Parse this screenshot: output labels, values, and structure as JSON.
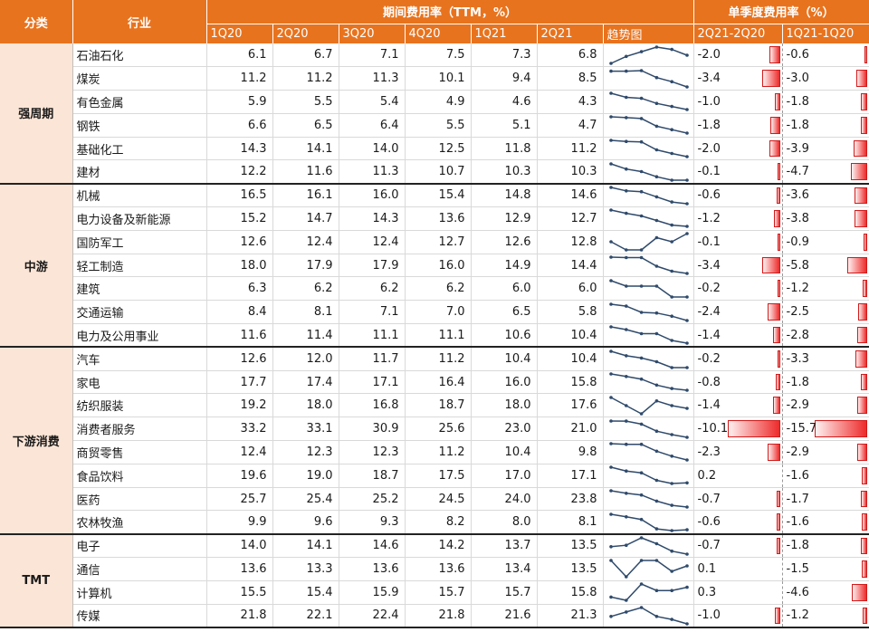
{
  "header": {
    "category": "分类",
    "industry": "行业",
    "ttm_group": "期间费用率（TTM，%）",
    "quarter_group": "单季度费用率（%）",
    "quarters": [
      "1Q20",
      "2Q20",
      "3Q20",
      "4Q20",
      "1Q21",
      "2Q21"
    ],
    "trend": "趋势图",
    "delta1": "2Q21-2Q20",
    "delta2": "1Q21-1Q20"
  },
  "groups": [
    {
      "name": "强周期",
      "rows": [
        {
          "industry": "石油石化",
          "vals": [
            "6.1",
            "6.7",
            "7.1",
            "7.5",
            "7.3",
            "6.8"
          ],
          "d1": "-2.0",
          "d2": "-0.6"
        },
        {
          "industry": "煤炭",
          "vals": [
            "11.2",
            "11.2",
            "11.3",
            "10.1",
            "9.4",
            "8.5"
          ],
          "d1": "-3.4",
          "d2": "-3.0"
        },
        {
          "industry": "有色金属",
          "vals": [
            "5.9",
            "5.5",
            "5.4",
            "4.9",
            "4.6",
            "4.3"
          ],
          "d1": "-1.0",
          "d2": "-1.8"
        },
        {
          "industry": "钢铁",
          "vals": [
            "6.6",
            "6.5",
            "6.4",
            "5.5",
            "5.1",
            "4.7"
          ],
          "d1": "-1.8",
          "d2": "-1.8"
        },
        {
          "industry": "基础化工",
          "vals": [
            "14.3",
            "14.1",
            "14.0",
            "12.5",
            "11.8",
            "11.2"
          ],
          "d1": "-2.0",
          "d2": "-3.9"
        },
        {
          "industry": "建材",
          "vals": [
            "12.2",
            "11.6",
            "11.3",
            "10.7",
            "10.3",
            "10.3"
          ],
          "d1": "-0.1",
          "d2": "-4.7"
        }
      ]
    },
    {
      "name": "中游",
      "rows": [
        {
          "industry": "机械",
          "vals": [
            "16.5",
            "16.1",
            "16.0",
            "15.4",
            "14.8",
            "14.6"
          ],
          "d1": "-0.6",
          "d2": "-3.6"
        },
        {
          "industry": "电力设备及新能源",
          "vals": [
            "15.2",
            "14.7",
            "14.3",
            "13.6",
            "12.9",
            "12.7"
          ],
          "d1": "-1.2",
          "d2": "-3.8"
        },
        {
          "industry": "国防军工",
          "vals": [
            "12.6",
            "12.4",
            "12.4",
            "12.7",
            "12.6",
            "12.8"
          ],
          "d1": "-0.1",
          "d2": "-0.9"
        },
        {
          "industry": "轻工制造",
          "vals": [
            "18.0",
            "17.9",
            "17.9",
            "16.0",
            "14.9",
            "14.4"
          ],
          "d1": "-3.4",
          "d2": "-5.8"
        },
        {
          "industry": "建筑",
          "vals": [
            "6.3",
            "6.2",
            "6.2",
            "6.2",
            "6.0",
            "6.0"
          ],
          "d1": "-0.2",
          "d2": "-1.2"
        },
        {
          "industry": "交通运输",
          "vals": [
            "8.4",
            "8.1",
            "7.1",
            "7.0",
            "6.5",
            "5.8"
          ],
          "d1": "-2.4",
          "d2": "-2.5"
        },
        {
          "industry": "电力及公用事业",
          "vals": [
            "11.6",
            "11.4",
            "11.1",
            "11.1",
            "10.6",
            "10.4"
          ],
          "d1": "-1.4",
          "d2": "-2.8"
        }
      ]
    },
    {
      "name": "下游消费",
      "rows": [
        {
          "industry": "汽车",
          "vals": [
            "12.6",
            "12.0",
            "11.7",
            "11.2",
            "10.4",
            "10.4"
          ],
          "d1": "-0.2",
          "d2": "-3.3"
        },
        {
          "industry": "家电",
          "vals": [
            "17.7",
            "17.4",
            "17.1",
            "16.4",
            "16.0",
            "15.8"
          ],
          "d1": "-0.8",
          "d2": "-1.8"
        },
        {
          "industry": "纺织服装",
          "vals": [
            "19.2",
            "18.0",
            "16.8",
            "18.7",
            "18.0",
            "17.6"
          ],
          "d1": "-1.4",
          "d2": "-2.9"
        },
        {
          "industry": "消费者服务",
          "vals": [
            "33.2",
            "33.1",
            "30.9",
            "25.6",
            "23.0",
            "21.0"
          ],
          "d1": "-10.1",
          "d2": "-15.7"
        },
        {
          "industry": "商贸零售",
          "vals": [
            "12.4",
            "12.3",
            "12.3",
            "11.2",
            "10.4",
            "9.8"
          ],
          "d1": "-2.3",
          "d2": "-2.9"
        },
        {
          "industry": "食品饮料",
          "vals": [
            "19.6",
            "19.0",
            "18.7",
            "17.5",
            "17.0",
            "17.1"
          ],
          "d1": "0.2",
          "d2": "-1.6"
        },
        {
          "industry": "医药",
          "vals": [
            "25.7",
            "25.4",
            "25.2",
            "24.5",
            "24.0",
            "23.8"
          ],
          "d1": "-0.7",
          "d2": "-1.7"
        },
        {
          "industry": "农林牧渔",
          "vals": [
            "9.9",
            "9.6",
            "9.3",
            "8.2",
            "8.0",
            "8.1"
          ],
          "d1": "-0.6",
          "d2": "-1.6"
        }
      ]
    },
    {
      "name": "TMT",
      "rows": [
        {
          "industry": "电子",
          "vals": [
            "14.0",
            "14.1",
            "14.6",
            "14.2",
            "13.7",
            "13.5"
          ],
          "d1": "-0.7",
          "d2": "-1.8"
        },
        {
          "industry": "通信",
          "vals": [
            "13.6",
            "13.3",
            "13.6",
            "13.6",
            "13.4",
            "13.5"
          ],
          "d1": "0.1",
          "d2": "-1.5"
        },
        {
          "industry": "计算机",
          "vals": [
            "15.5",
            "15.4",
            "15.9",
            "15.7",
            "15.7",
            "15.8"
          ],
          "d1": "0.3",
          "d2": "-4.6"
        },
        {
          "industry": "传媒",
          "vals": [
            "21.8",
            "22.1",
            "22.4",
            "21.8",
            "21.6",
            "21.3"
          ],
          "d1": "-1.0",
          "d2": "-1.2"
        }
      ]
    }
  ],
  "colors": {
    "header": "#e8731e",
    "category_bg": "#fbe5d6",
    "bar": "#ee2b2b",
    "sparkline": "#2f4a6b"
  }
}
